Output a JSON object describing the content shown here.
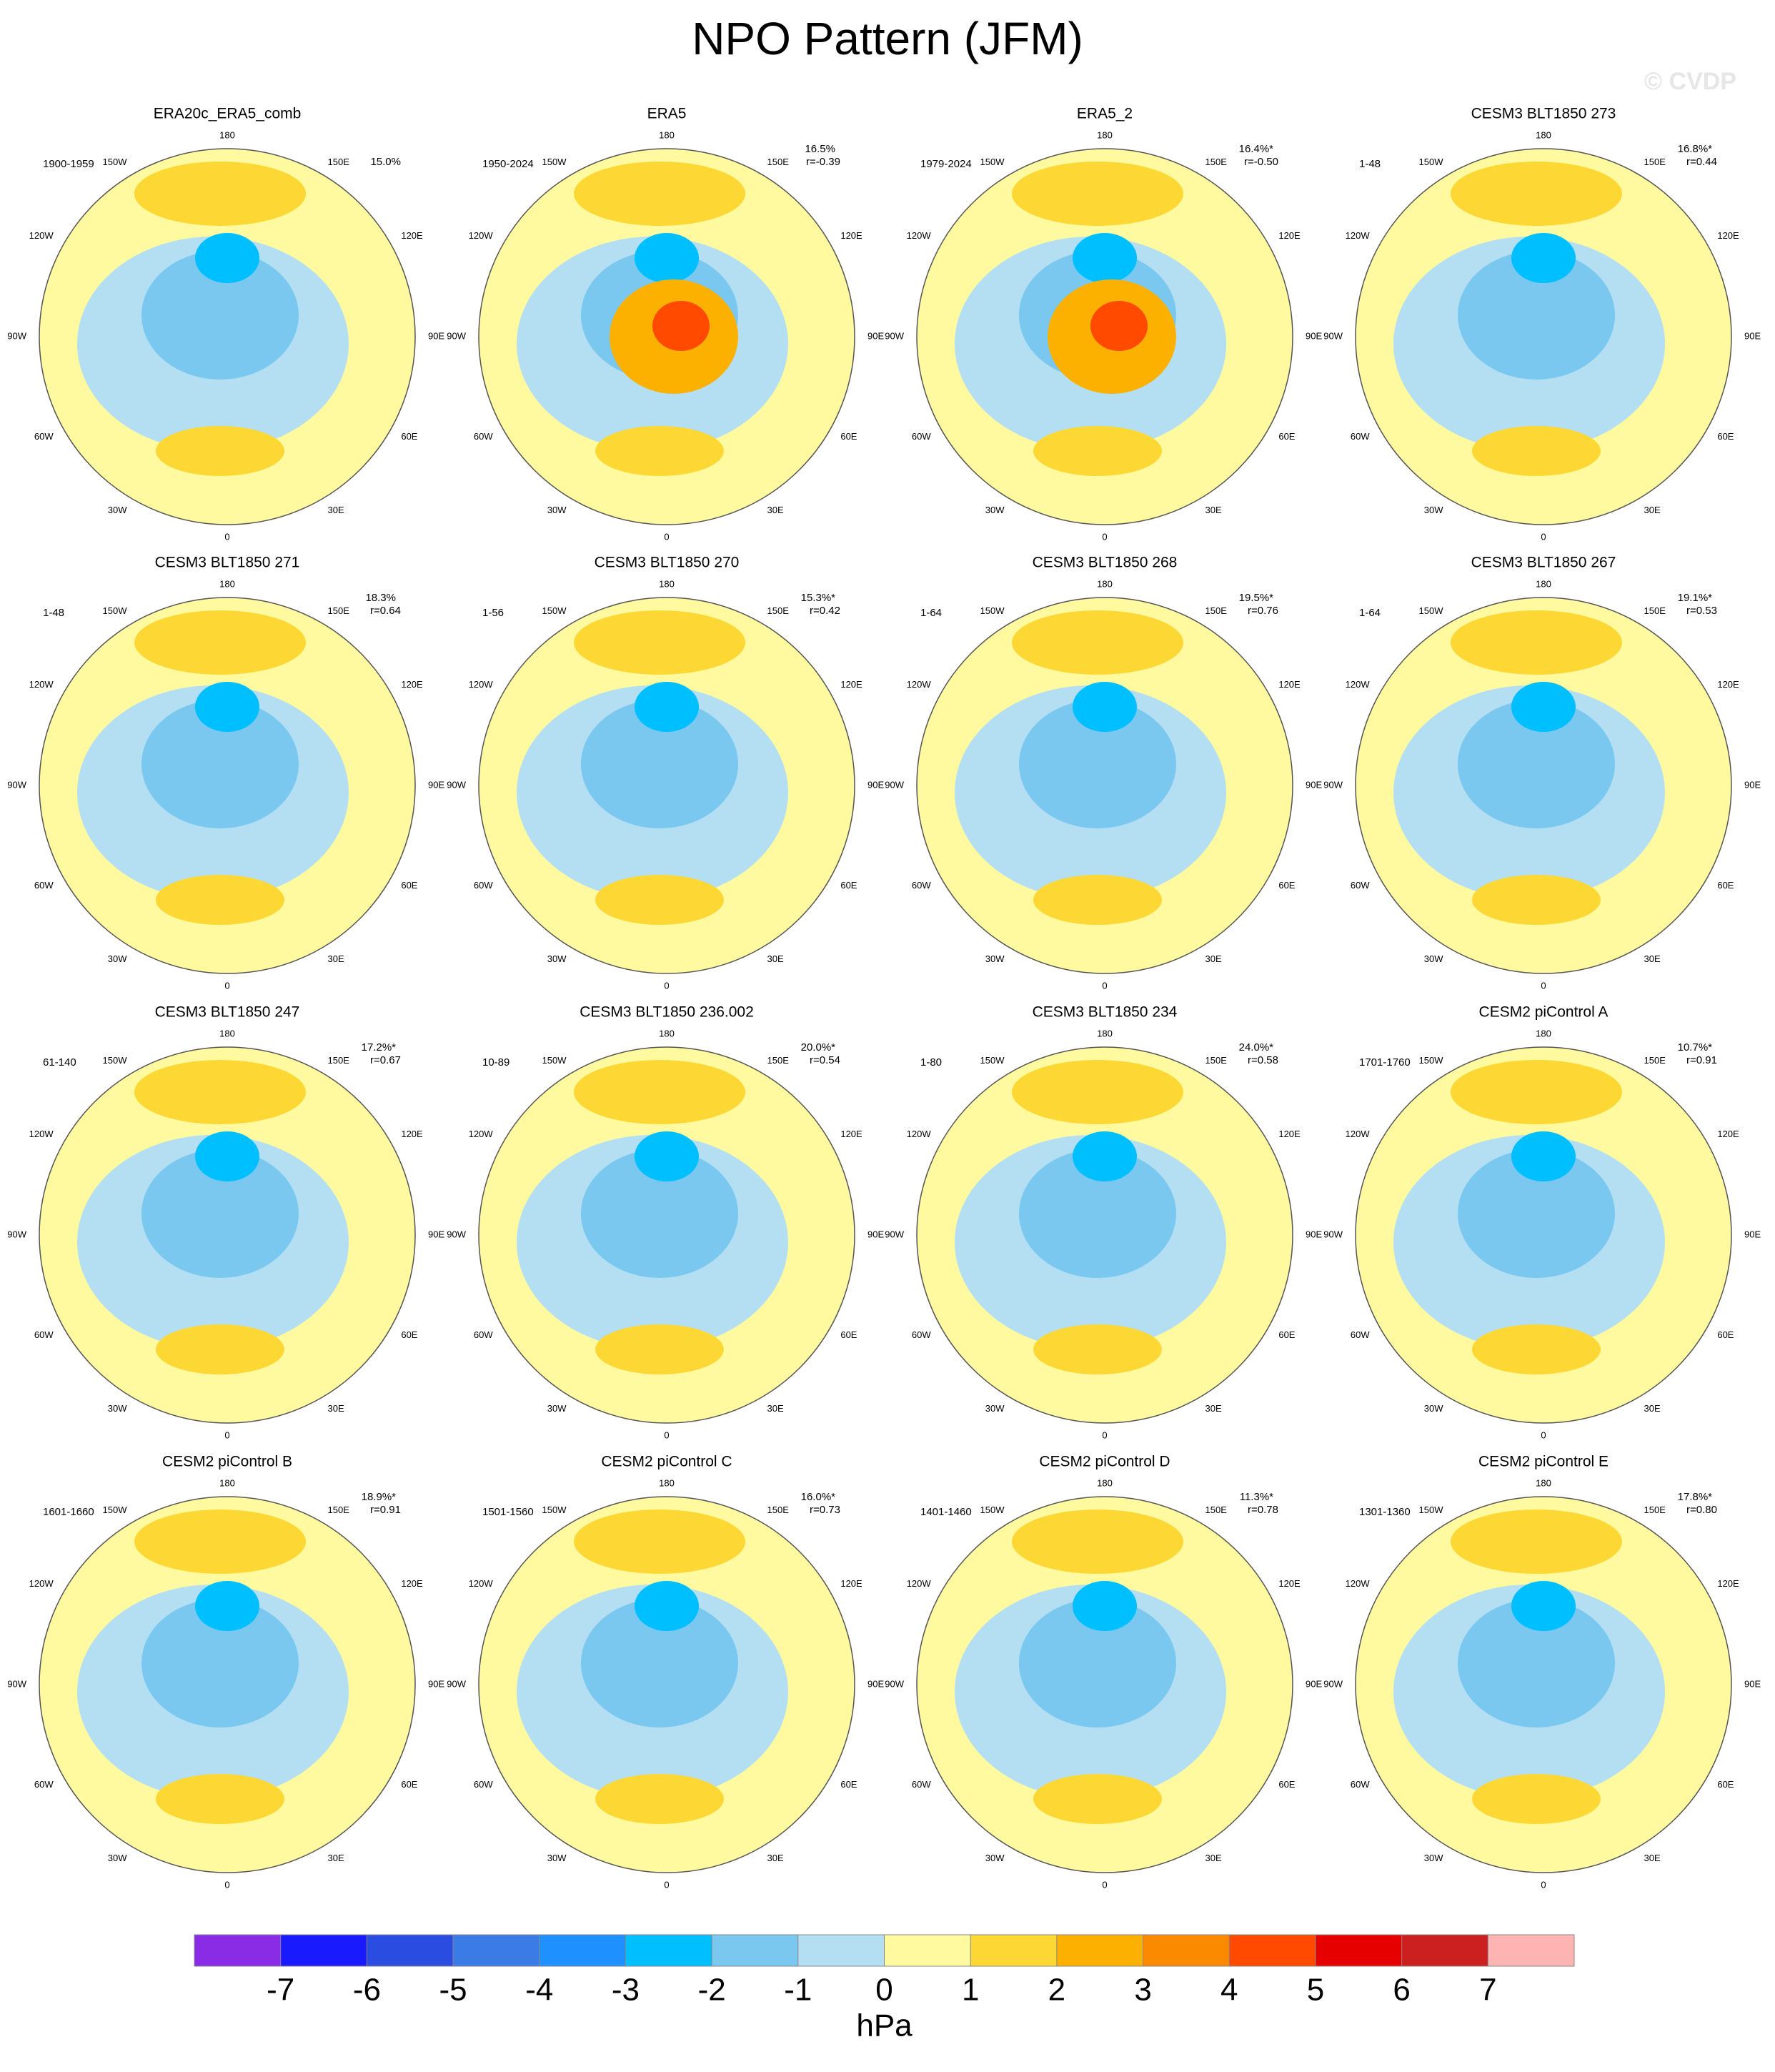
{
  "header": {
    "title": "NPO Pattern (JFM)",
    "watermark": "© CVDP"
  },
  "longitude_labels": [
    "180",
    "150E",
    "120E",
    "90E",
    "60E",
    "30E",
    "0",
    "30W",
    "60W",
    "90W",
    "120W",
    "150W"
  ],
  "panels": [
    {
      "title": "ERA20c_ERA5_comb",
      "period": "1900-1959",
      "percent": "15.0%"
    },
    {
      "title": "ERA5",
      "period": "1950-2024",
      "percent": "16.5%",
      "r": "r=-0.39"
    },
    {
      "title": "ERA5_2",
      "period": "1979-2024",
      "percent": "16.4%*",
      "r": "r=-0.50"
    },
    {
      "title": "CESM3 BLT1850 273",
      "period": "1-48",
      "percent": "16.8%*",
      "r": "r=0.44"
    },
    {
      "title": "CESM3 BLT1850 271",
      "period": "1-48",
      "percent": "18.3%",
      "r": "r=0.64"
    },
    {
      "title": "CESM3 BLT1850 270",
      "period": "1-56",
      "percent": "15.3%*",
      "r": "r=0.42"
    },
    {
      "title": "CESM3 BLT1850 268",
      "period": "1-64",
      "percent": "19.5%*",
      "r": "r=0.76"
    },
    {
      "title": "CESM3 BLT1850 267",
      "period": "1-64",
      "percent": "19.1%*",
      "r": "r=0.53"
    },
    {
      "title": "CESM3 BLT1850 247",
      "period": "61-140",
      "percent": "17.2%*",
      "r": "r=0.67"
    },
    {
      "title": "CESM3 BLT1850 236.002",
      "period": "10-89",
      "percent": "20.0%*",
      "r": "r=0.54"
    },
    {
      "title": "CESM3 BLT1850 234",
      "period": "1-80",
      "percent": "24.0%*",
      "r": "r=0.58"
    },
    {
      "title": "CESM2 piControl A",
      "period": "1701-1760",
      "percent": "10.7%*",
      "r": "r=0.91"
    },
    {
      "title": "CESM2 piControl B",
      "period": "1601-1660",
      "percent": "18.9%*",
      "r": "r=0.91"
    },
    {
      "title": "CESM2 piControl C",
      "period": "1501-1560",
      "percent": "16.0%*",
      "r": "r=0.73"
    },
    {
      "title": "CESM2 piControl D",
      "period": "1401-1460",
      "percent": "11.3%*",
      "r": "r=0.78"
    },
    {
      "title": "CESM2 piControl E",
      "period": "1301-1360",
      "percent": "17.8%*",
      "r": "r=0.80"
    }
  ],
  "colorbar": {
    "levels": [
      -7,
      -6,
      -5,
      -4,
      -3,
      -2,
      -1,
      0,
      1,
      2,
      3,
      4,
      5,
      6,
      7
    ],
    "colors": [
      "#8a2be6",
      "#1a1aff",
      "#2b4ce0",
      "#3a7be6",
      "#1e90ff",
      "#00bfff",
      "#7ac8f0",
      "#b4dff2",
      "#fffaa0",
      "#fdd835",
      "#fcb000",
      "#fb8a00",
      "#ff4a00",
      "#e60000",
      "#cc2020",
      "#ffb4b4"
    ],
    "unit": "hPa"
  }
}
